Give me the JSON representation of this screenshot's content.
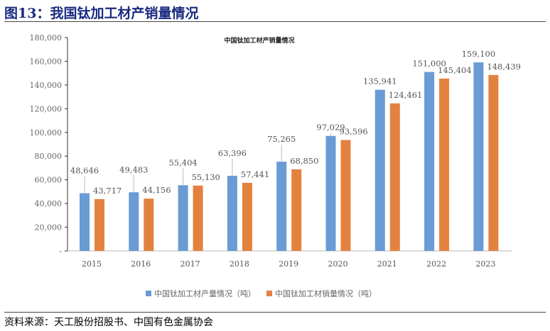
{
  "figure_title": "图13：我国钛加工材产销量情况",
  "source": "资料来源：天工股份招股书、中国有色金属协会",
  "colors": {
    "production": "#6a9bd4",
    "sales": "#e3823f"
  },
  "chart_data": {
    "type": "bar",
    "title": "中国钛加工材产销量情况",
    "categories": [
      "2015",
      "2016",
      "2017",
      "2018",
      "2019",
      "2020",
      "2021",
      "2022",
      "2023"
    ],
    "series": [
      {
        "name": "中国钛加工材产量情况（吨）",
        "values": [
          48646,
          49483,
          55404,
          63396,
          75265,
          97029,
          135941,
          151000,
          159100
        ],
        "labels": [
          "48,646",
          "49,483",
          "55,404",
          "63,396",
          "75,265",
          "97,029",
          "135,941",
          "151,000",
          "159,100"
        ]
      },
      {
        "name": "中国钛加工材销量情况（吨）",
        "values": [
          43717,
          44156,
          55130,
          57441,
          68850,
          93596,
          124461,
          145404,
          148439
        ],
        "labels": [
          "43,717",
          "44,156",
          "55,130",
          "57,441",
          "68,850",
          "93,596",
          "124,461",
          "145,404",
          "148,439"
        ]
      }
    ],
    "ylim": [
      0,
      180000
    ],
    "yticks": [
      "-",
      "20,000",
      "40,000",
      "60,000",
      "80,000",
      "100,000",
      "120,000",
      "140,000",
      "160,000",
      "180,000"
    ],
    "grid": false,
    "legend": "bottom"
  }
}
